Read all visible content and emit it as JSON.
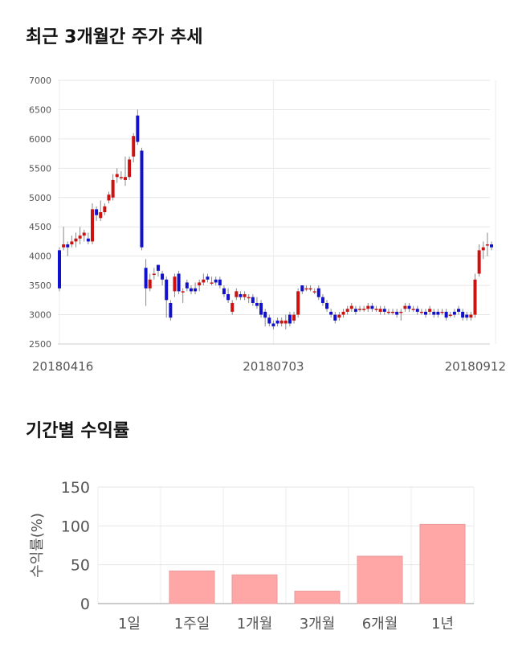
{
  "sections": {
    "price_title": "최근 3개월간 주가 추세",
    "returns_title": "기간별 수익률"
  },
  "chart_data": [
    {
      "type": "candlestick",
      "title": "최근 3개월간 주가 추세",
      "ylim": [
        2500,
        7000
      ],
      "y_ticks": [
        2500,
        3000,
        3500,
        4000,
        4500,
        5000,
        5500,
        6000,
        6500,
        7000
      ],
      "x_tick_labels": [
        "20180416",
        "20180703",
        "20180912"
      ],
      "x_tick_index": [
        0,
        52,
        106
      ],
      "grid": true,
      "up_color": "#cc1111",
      "down_color": "#1111cc",
      "candles": [
        [
          4100,
          3450,
          4150,
          3400
        ],
        [
          4150,
          4200,
          4500,
          4100
        ],
        [
          4200,
          4150,
          4250,
          4000
        ],
        [
          4200,
          4250,
          4350,
          4150
        ],
        [
          4250,
          4300,
          4400,
          4150
        ],
        [
          4300,
          4350,
          4500,
          4200
        ],
        [
          4350,
          4400,
          4450,
          4250
        ],
        [
          4300,
          4250,
          4400,
          4200
        ],
        [
          4250,
          4800,
          4900,
          4200
        ],
        [
          4800,
          4700,
          4850,
          4600
        ],
        [
          4650,
          4750,
          4950,
          4600
        ],
        [
          4750,
          4850,
          4900,
          4700
        ],
        [
          4950,
          5050,
          5100,
          4900
        ],
        [
          5000,
          5300,
          5400,
          4950
        ],
        [
          5350,
          5400,
          5500,
          5250
        ],
        [
          5350,
          5350,
          5450,
          5300
        ],
        [
          5300,
          5350,
          5700,
          5200
        ],
        [
          5350,
          5650,
          5700,
          5300
        ],
        [
          5700,
          6050,
          6100,
          5600
        ],
        [
          6400,
          5950,
          6500,
          5900
        ],
        [
          5800,
          4150,
          5850,
          4100
        ],
        [
          3800,
          3450,
          3950,
          3150
        ],
        [
          3450,
          3600,
          3700,
          3400
        ],
        [
          3700,
          3700,
          3800,
          3600
        ],
        [
          3850,
          3750,
          3850,
          3650
        ],
        [
          3700,
          3600,
          3750,
          3500
        ],
        [
          3600,
          3250,
          3650,
          2950
        ],
        [
          3200,
          2950,
          3250,
          2900
        ],
        [
          3400,
          3650,
          3700,
          3300
        ],
        [
          3700,
          3400,
          3750,
          3350
        ],
        [
          3400,
          3400,
          3450,
          3200
        ],
        [
          3550,
          3450,
          3600,
          3400
        ],
        [
          3450,
          3400,
          3500,
          3350
        ],
        [
          3450,
          3400,
          3550,
          3350
        ],
        [
          3500,
          3550,
          3600,
          3400
        ],
        [
          3550,
          3600,
          3700,
          3500
        ],
        [
          3650,
          3600,
          3700,
          3550
        ],
        [
          3550,
          3550,
          3650,
          3500
        ],
        [
          3600,
          3550,
          3650,
          3500
        ],
        [
          3600,
          3500,
          3650,
          3450
        ],
        [
          3450,
          3350,
          3500,
          3300
        ],
        [
          3350,
          3250,
          3450,
          3200
        ],
        [
          3050,
          3200,
          3250,
          3000
        ],
        [
          3300,
          3400,
          3450,
          3250
        ],
        [
          3350,
          3300,
          3400,
          3250
        ],
        [
          3300,
          3350,
          3400,
          3250
        ],
        [
          3300,
          3300,
          3350,
          3200
        ],
        [
          3300,
          3200,
          3350,
          3150
        ],
        [
          3200,
          3150,
          3300,
          3100
        ],
        [
          3200,
          3000,
          3250,
          2950
        ],
        [
          3050,
          2950,
          3100,
          2800
        ],
        [
          2950,
          2850,
          3000,
          2800
        ],
        [
          2850,
          2800,
          2900,
          2750
        ],
        [
          2900,
          2850,
          2950,
          2800
        ],
        [
          2850,
          2900,
          2950,
          2800
        ],
        [
          2850,
          2900,
          3000,
          2750
        ],
        [
          3000,
          2850,
          3050,
          2800
        ],
        [
          2900,
          3000,
          3050,
          2850
        ],
        [
          3000,
          3400,
          3450,
          2950
        ],
        [
          3500,
          3400,
          3500,
          3350
        ],
        [
          3450,
          3450,
          3500,
          3400
        ],
        [
          3450,
          3450,
          3500,
          3400
        ],
        [
          3400,
          3400,
          3450,
          3350
        ],
        [
          3450,
          3300,
          3500,
          3250
        ],
        [
          3300,
          3200,
          3350,
          3150
        ],
        [
          3200,
          3100,
          3250,
          3050
        ],
        [
          3050,
          3000,
          3100,
          2950
        ],
        [
          3000,
          2900,
          3050,
          2850
        ],
        [
          2950,
          3000,
          3050,
          2900
        ],
        [
          3000,
          3050,
          3100,
          2950
        ],
        [
          3050,
          3100,
          3150,
          3000
        ],
        [
          3100,
          3150,
          3200,
          3050
        ],
        [
          3100,
          3050,
          3150,
          3000
        ],
        [
          3100,
          3100,
          3150,
          3050
        ],
        [
          3100,
          3100,
          3150,
          3050
        ],
        [
          3100,
          3150,
          3200,
          3050
        ],
        [
          3150,
          3100,
          3200,
          3050
        ],
        [
          3100,
          3100,
          3150,
          3050
        ],
        [
          3050,
          3100,
          3150,
          3000
        ],
        [
          3100,
          3050,
          3150,
          3000
        ],
        [
          3050,
          3050,
          3100,
          3000
        ],
        [
          3050,
          3050,
          3100,
          3000
        ],
        [
          3050,
          3000,
          3100,
          2950
        ],
        [
          3050,
          3050,
          3100,
          2900
        ],
        [
          3100,
          3150,
          3200,
          3050
        ],
        [
          3150,
          3100,
          3200,
          3050
        ],
        [
          3100,
          3100,
          3150,
          3050
        ],
        [
          3100,
          3050,
          3150,
          3000
        ],
        [
          3050,
          3050,
          3100,
          3000
        ],
        [
          3050,
          3000,
          3100,
          2950
        ],
        [
          3050,
          3100,
          3150,
          3000
        ],
        [
          3050,
          3000,
          3100,
          2950
        ],
        [
          3050,
          3000,
          3100,
          2950
        ],
        [
          3050,
          3050,
          3100,
          3000
        ],
        [
          3050,
          2950,
          3100,
          2900
        ],
        [
          3000,
          3000,
          3050,
          2950
        ],
        [
          3050,
          3000,
          3100,
          2950
        ],
        [
          3100,
          3050,
          3150,
          3000
        ],
        [
          3050,
          2950,
          3100,
          2900
        ],
        [
          3000,
          2950,
          3050,
          2900
        ],
        [
          2950,
          3000,
          3050,
          2900
        ],
        [
          3000,
          3600,
          3700,
          2950
        ],
        [
          3700,
          4100,
          4200,
          3650
        ],
        [
          4100,
          4150,
          4250,
          3950
        ],
        [
          4200,
          4200,
          4400,
          4000
        ],
        [
          4200,
          4150,
          4250,
          4100
        ]
      ]
    },
    {
      "type": "bar",
      "title": "기간별 수익률",
      "ylabel": "수익률(%)",
      "categories": [
        "1일",
        "1주일",
        "1개월",
        "3개월",
        "6개월",
        "1년"
      ],
      "values": [
        0,
        42,
        37,
        16,
        61,
        102
      ],
      "ylim": [
        0,
        150
      ],
      "y_ticks": [
        0,
        50,
        100,
        150
      ],
      "grid": true,
      "bar_color": "#ffa6a6"
    }
  ]
}
